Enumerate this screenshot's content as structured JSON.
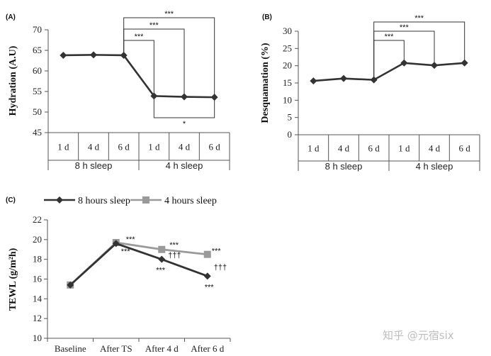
{
  "watermark": "知乎 @元宿six",
  "chart_data": [
    {
      "panel": "(A)",
      "type": "line",
      "ylabel": "Hydration (A.U)",
      "ylim": [
        45,
        70
      ],
      "yticks": [
        45,
        50,
        55,
        60,
        65,
        70
      ],
      "categories": [
        "1 d",
        "4 d",
        "6 d",
        "1 d",
        "4 d",
        "6 d"
      ],
      "groups": [
        {
          "label": "8 h sleep",
          "span": [
            0,
            2
          ]
        },
        {
          "label": "4 h sleep",
          "span": [
            3,
            5
          ]
        }
      ],
      "series": [
        {
          "values": [
            63.8,
            63.9,
            63.8,
            53.9,
            53.7,
            53.6
          ],
          "color": "#333333"
        }
      ],
      "brackets": [
        {
          "from": 2,
          "to": 3,
          "label": "***",
          "side": "top"
        },
        {
          "from": 2,
          "to": 4,
          "label": "***",
          "side": "top"
        },
        {
          "from": 2,
          "to": 5,
          "label": "***",
          "side": "top"
        },
        {
          "from": 3,
          "to": 5,
          "label": "*",
          "side": "bottom"
        }
      ]
    },
    {
      "panel": "(B)",
      "type": "line",
      "ylabel": "Desquamation  (%)",
      "ylim": [
        0,
        30
      ],
      "yticks": [
        0,
        5,
        10,
        15,
        20,
        25,
        30
      ],
      "categories": [
        "1 d",
        "4 d",
        "6 d",
        "1 d",
        "4 d",
        "6 d"
      ],
      "groups": [
        {
          "label": "8 h sleep",
          "span": [
            0,
            2
          ]
        },
        {
          "label": "4 h  sleep",
          "span": [
            3,
            5
          ]
        }
      ],
      "series": [
        {
          "values": [
            15.6,
            16.3,
            15.9,
            20.8,
            20.1,
            20.8
          ],
          "color": "#333333"
        }
      ],
      "brackets": [
        {
          "from": 2,
          "to": 3,
          "label": "***",
          "side": "top"
        },
        {
          "from": 2,
          "to": 4,
          "label": "***",
          "side": "top"
        },
        {
          "from": 2,
          "to": 5,
          "label": "***",
          "side": "top"
        }
      ]
    },
    {
      "panel": "(C)",
      "type": "line",
      "ylabel": "TEWL (g/m²h)",
      "ylim": [
        10,
        22
      ],
      "yticks": [
        10,
        12,
        14,
        16,
        18,
        20,
        22
      ],
      "categories": [
        "Baseline",
        "After TS",
        "After 4 d",
        "After 6 d"
      ],
      "series": [
        {
          "name": "8 hours sleep",
          "values": [
            15.4,
            19.6,
            18.0,
            16.3
          ],
          "color": "#333333",
          "marker": "diamond"
        },
        {
          "name": "4 hours sleep",
          "values": [
            15.4,
            19.7,
            19.0,
            18.5
          ],
          "color": "#9a9a9a",
          "marker": "square"
        }
      ],
      "annotations": [
        {
          "text": "***",
          "category": 1,
          "value": 19.55,
          "dx": 14,
          "dy": -3
        },
        {
          "text": "***",
          "category": 1,
          "value": 19.55,
          "dx": 7,
          "dy": 14
        },
        {
          "text": "***",
          "category": 2,
          "value": 19.0,
          "dx": 11,
          "dy": -3
        },
        {
          "text": "†††",
          "category": 2,
          "value": 18.5,
          "dx": 9,
          "dy": 5
        },
        {
          "text": "***",
          "category": 2,
          "value": 18.0,
          "dx": -8,
          "dy": 19
        },
        {
          "text": "***",
          "category": 3,
          "value": 18.5,
          "dx": 6,
          "dy": -1
        },
        {
          "text": "†††",
          "category": 3,
          "value": 17.3,
          "dx": 9,
          "dy": 5
        },
        {
          "text": "***",
          "category": 3,
          "value": 16.3,
          "dx": -4,
          "dy": 19
        }
      ]
    }
  ]
}
